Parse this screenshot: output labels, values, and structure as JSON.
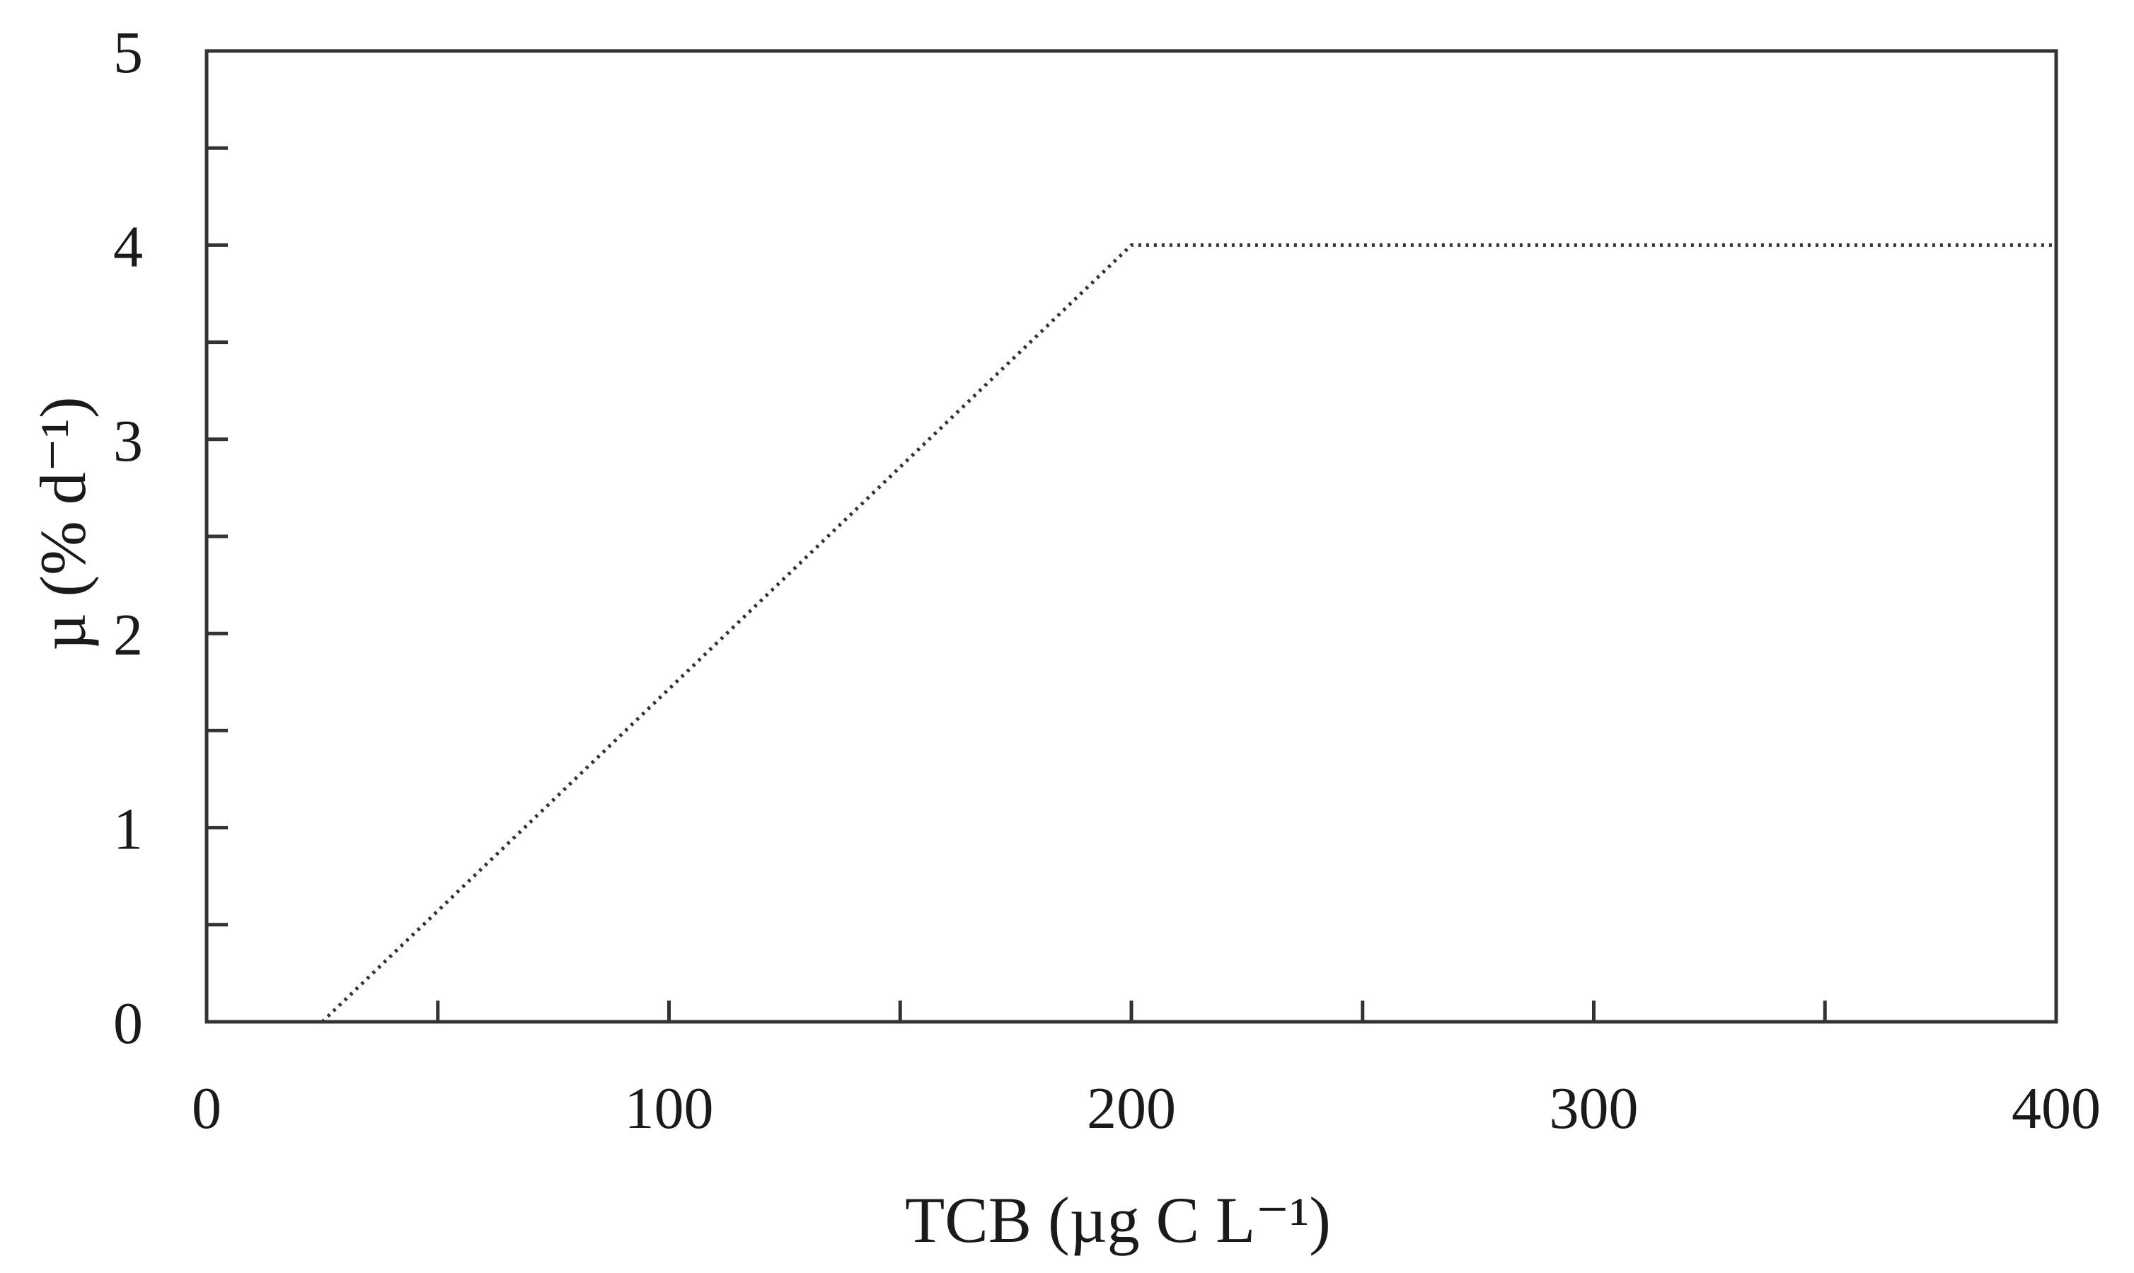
{
  "chart_data": {
    "type": "line",
    "xlabel": "TCB (µg C L⁻¹)",
    "ylabel": "µ (% d⁻¹)",
    "xlim": [
      0,
      400
    ],
    "ylim": [
      0,
      5
    ],
    "x_ticks": [
      0,
      100,
      200,
      300,
      400
    ],
    "x_tick_labels": [
      "0",
      "100",
      "200",
      "300",
      "400"
    ],
    "x_minor_ticks": [
      50,
      150,
      250,
      350
    ],
    "y_ticks": [
      0,
      1,
      2,
      3,
      4,
      5
    ],
    "y_tick_labels": [
      "0",
      "1",
      "2",
      "3",
      "4",
      "5"
    ],
    "y_minor_ticks": [
      0.5,
      1.5,
      2.5,
      3.5,
      4.5
    ],
    "grid": false,
    "legend": "none",
    "series": [
      {
        "style": "dotted",
        "color": "#333333",
        "x": [
          25,
          200,
          400
        ],
        "y": [
          0,
          4,
          4
        ]
      }
    ]
  }
}
